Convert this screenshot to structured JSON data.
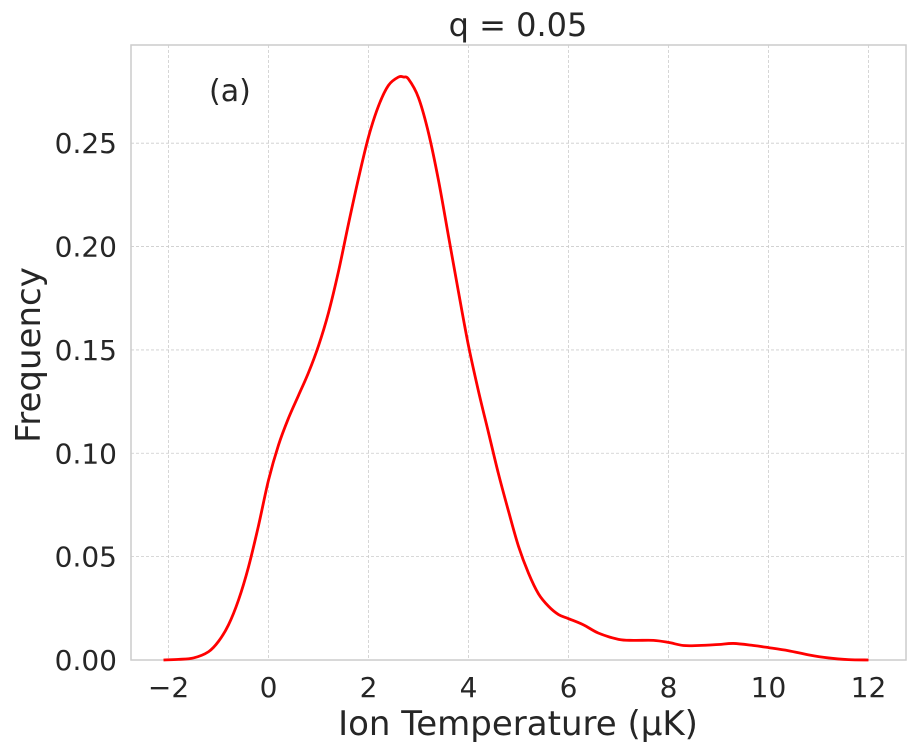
{
  "chart_data": {
    "type": "line",
    "title": "q = 0.05",
    "xlabel": "Ion Temperature (μK)",
    "ylabel": "Frequency",
    "annotation": "(a)",
    "xlim": [
      -2.75,
      12.75
    ],
    "ylim": [
      0,
      0.2975
    ],
    "xticks": [
      -2,
      0,
      2,
      4,
      6,
      8,
      10,
      12
    ],
    "xtick_labels": [
      "−2",
      "0",
      "2",
      "4",
      "6",
      "8",
      "10",
      "12"
    ],
    "yticks": [
      0.0,
      0.05,
      0.1,
      0.15,
      0.2,
      0.25
    ],
    "ytick_labels": [
      "0.00",
      "0.05",
      "0.10",
      "0.15",
      "0.20",
      "0.25"
    ],
    "grid": true,
    "series": [
      {
        "color": "#ff0000",
        "x": [
          -2.1,
          -1.8,
          -1.5,
          -1.2,
          -1.0,
          -0.8,
          -0.6,
          -0.4,
          -0.2,
          0.0,
          0.2,
          0.4,
          0.6,
          0.8,
          1.0,
          1.2,
          1.4,
          1.6,
          1.8,
          2.0,
          2.2,
          2.4,
          2.6,
          2.7,
          2.8,
          3.0,
          3.2,
          3.4,
          3.6,
          3.8,
          4.0,
          4.2,
          4.4,
          4.6,
          4.8,
          5.0,
          5.2,
          5.4,
          5.6,
          5.8,
          6.0,
          6.3,
          6.6,
          7.0,
          7.3,
          7.7,
          8.0,
          8.3,
          8.6,
          9.0,
          9.3,
          9.7,
          10.0,
          10.4,
          10.8,
          11.2,
          11.6,
          12.0
        ],
        "y": [
          0.0,
          0.0003,
          0.001,
          0.004,
          0.009,
          0.017,
          0.029,
          0.045,
          0.065,
          0.087,
          0.104,
          0.117,
          0.128,
          0.139,
          0.152,
          0.168,
          0.188,
          0.211,
          0.233,
          0.253,
          0.268,
          0.278,
          0.282,
          0.282,
          0.281,
          0.272,
          0.255,
          0.232,
          0.205,
          0.178,
          0.152,
          0.13,
          0.11,
          0.09,
          0.072,
          0.055,
          0.042,
          0.032,
          0.026,
          0.022,
          0.02,
          0.017,
          0.013,
          0.01,
          0.0095,
          0.0095,
          0.0085,
          0.007,
          0.007,
          0.0075,
          0.008,
          0.007,
          0.006,
          0.0045,
          0.0025,
          0.001,
          0.0002,
          0.0
        ]
      }
    ]
  }
}
